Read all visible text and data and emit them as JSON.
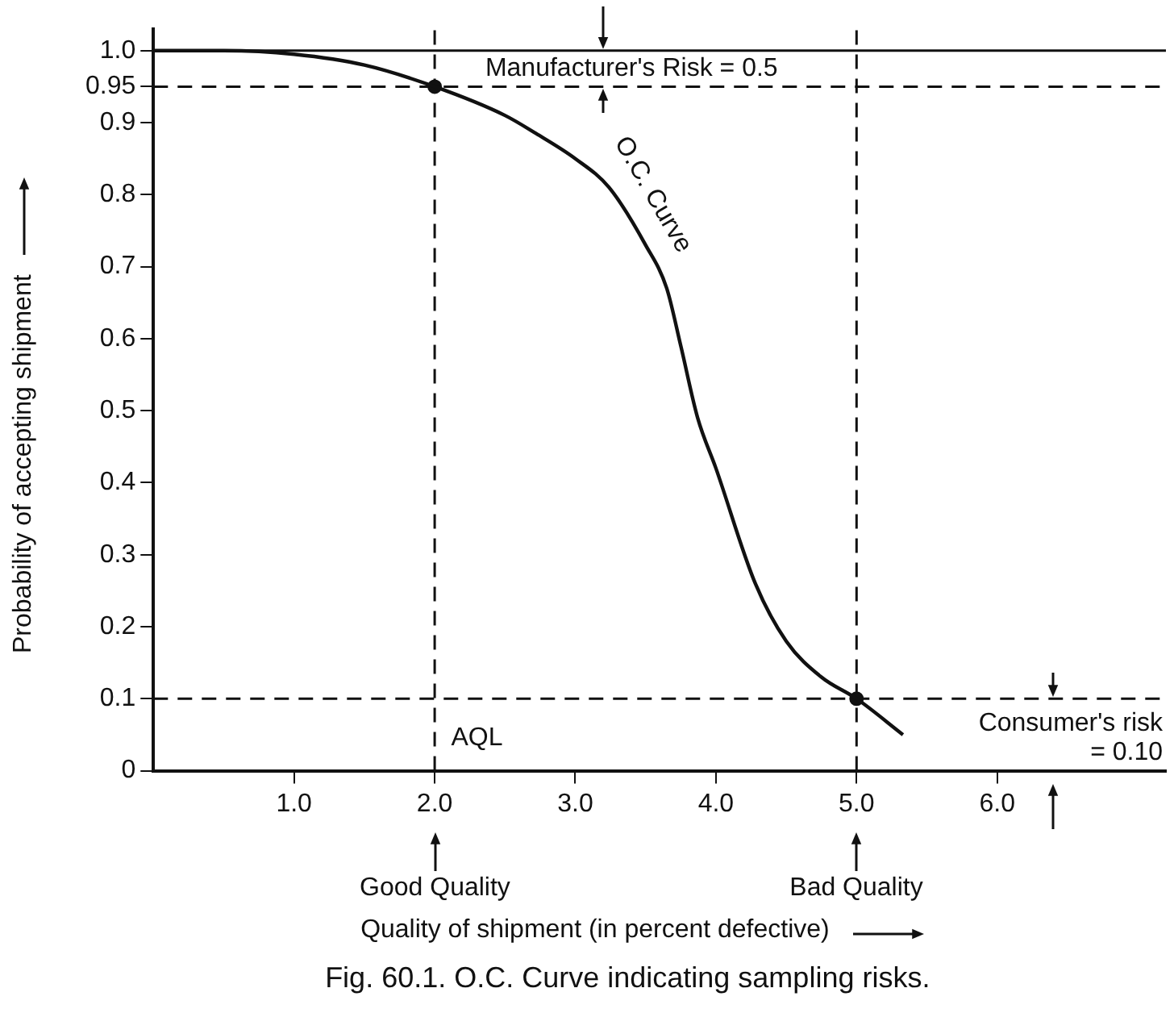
{
  "chart_data": {
    "type": "line",
    "title": "Fig. 60.1. O.C. Curve indicating sampling risks.",
    "xlabel": "Quality of shipment (in percent defective)",
    "ylabel": "Probability of accepting shipment",
    "x": [
      0,
      0.5,
      1.0,
      1.5,
      2.0,
      2.5,
      2.72,
      3.0,
      3.24,
      3.5,
      3.65,
      3.75,
      3.87,
      4.0,
      4.28,
      4.5,
      4.75,
      5.0,
      5.33
    ],
    "series": [
      {
        "color": "#111111",
        "values": [
          1.0,
          1.0,
          0.995,
          0.98,
          0.95,
          0.91,
          0.885,
          0.85,
          0.81,
          0.73,
          0.67,
          0.59,
          0.49,
          0.42,
          0.26,
          0.18,
          0.13,
          0.1,
          0.05
        ],
        "marker": "none"
      },
      {
        "type": "scatter",
        "color": "#111111",
        "x": [
          2.0,
          5.0
        ],
        "values": [
          0.95,
          0.1
        ],
        "marker": "circle"
      }
    ],
    "xlim": [
      0,
      7.2
    ],
    "ylim": [
      0,
      1.03
    ],
    "xticks": [
      {
        "value": 1,
        "label": "1.0"
      },
      {
        "value": 2,
        "label": "2.0"
      },
      {
        "value": 3,
        "label": "3.0"
      },
      {
        "value": 4,
        "label": "4.0"
      },
      {
        "value": 5,
        "label": "5.0"
      },
      {
        "value": 6,
        "label": "6.0"
      }
    ],
    "yticks": [
      0,
      0.1,
      0.2,
      0.3,
      0.4,
      0.5,
      0.6,
      0.7,
      0.8,
      0.9,
      0.95,
      {
        "value": 1,
        "label": "1.0"
      }
    ],
    "ref_lines": [
      {
        "axis": "x",
        "value": 2,
        "line_style": "dashed"
      },
      {
        "axis": "x",
        "value": 5,
        "line_style": "dashed"
      },
      {
        "axis": "y",
        "value": 0.95,
        "line_style": "dashed"
      },
      {
        "axis": "y",
        "value": 0.1,
        "line_style": "dashed"
      },
      {
        "axis": "y",
        "value": 1.0,
        "line_style": "solid"
      }
    ],
    "annotations": [
      "Manufacturer's Risk = 0.5",
      "O.C. Curve",
      "AQL",
      "Consumer's risk = 0.10",
      "Good Quality",
      "Bad Quality"
    ],
    "grid": false,
    "legend": false
  }
}
